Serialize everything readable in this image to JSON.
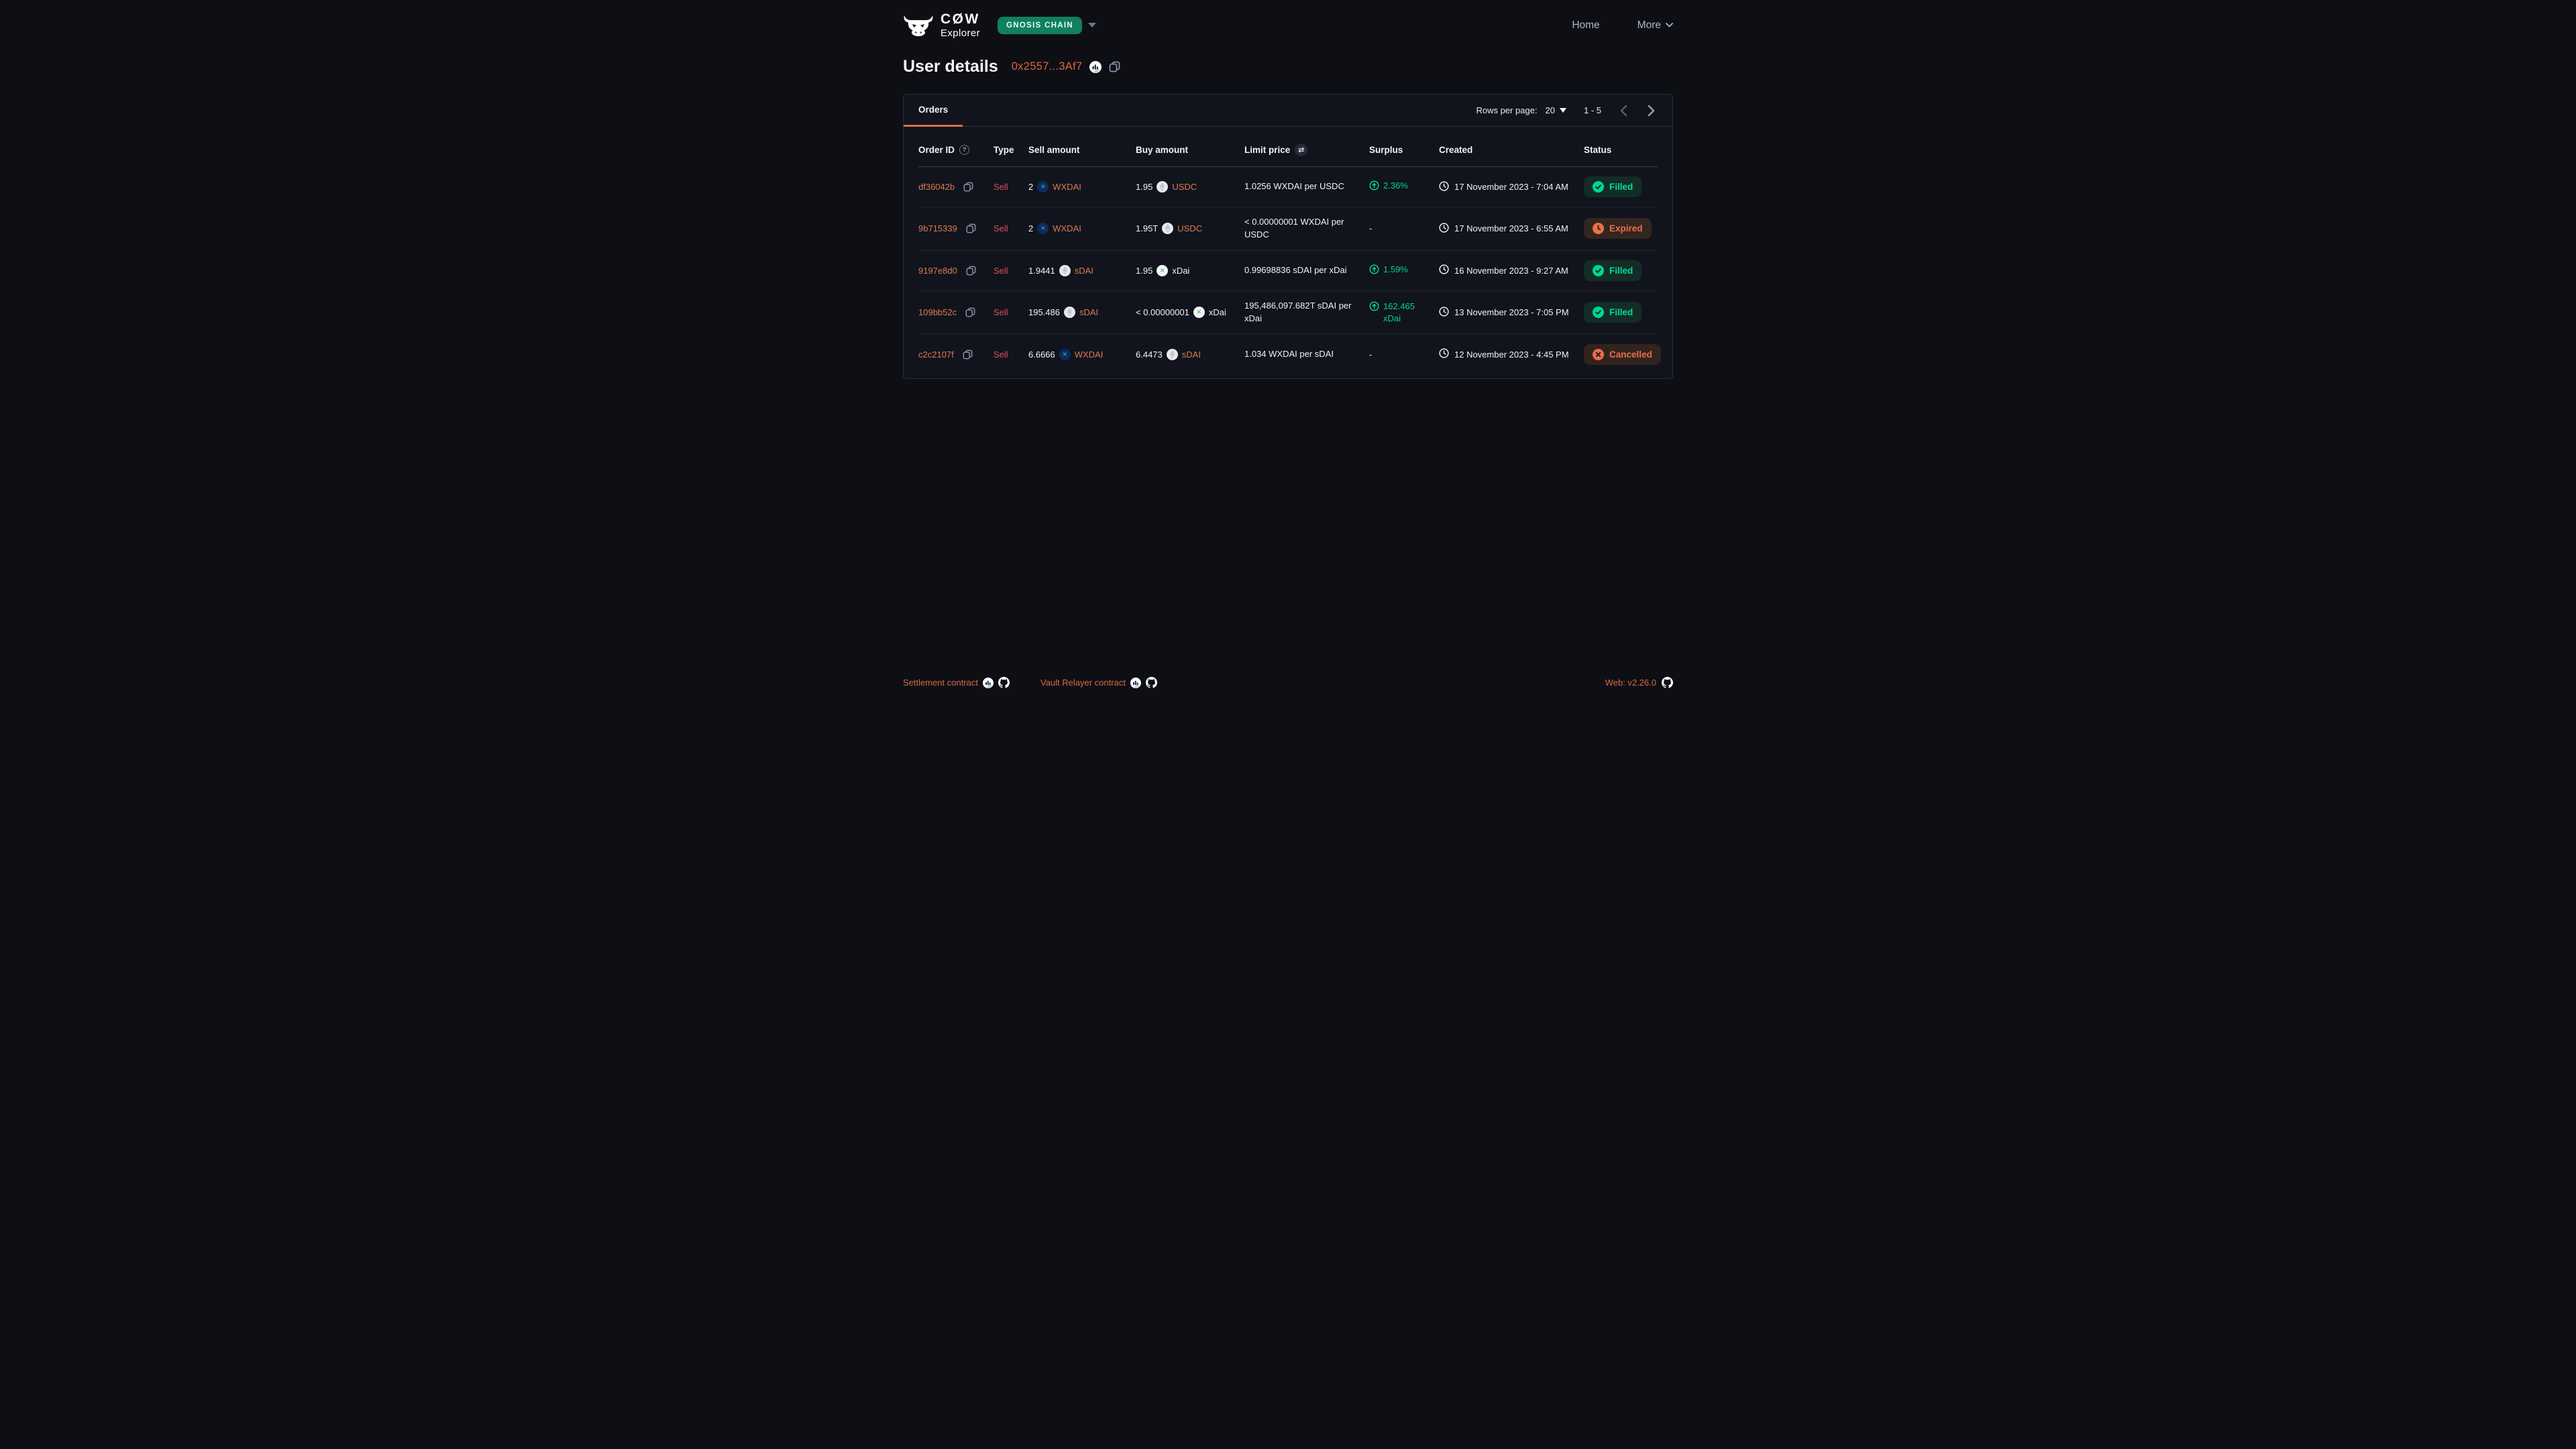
{
  "header": {
    "logo_title": "CØW",
    "logo_subtitle": "Explorer",
    "network_badge": "GNOSIS CHAIN",
    "nav": {
      "home": "Home",
      "more": "More"
    }
  },
  "page": {
    "title": "User details",
    "address": "0x2557...3Af7"
  },
  "tabs": {
    "orders": "Orders"
  },
  "pagination": {
    "rows_per_page_label": "Rows per page:",
    "rows_per_page_value": "20",
    "range": "1 - 5"
  },
  "table": {
    "columns": {
      "order_id": "Order ID",
      "type": "Type",
      "sell_amount": "Sell amount",
      "buy_amount": "Buy amount",
      "limit_price": "Limit price",
      "surplus": "Surplus",
      "created": "Created",
      "status": "Status"
    },
    "rows": [
      {
        "id": "df36042b",
        "type": "Sell",
        "sell": {
          "amount": "2",
          "token": "WXDAI",
          "icon": "wxdai",
          "link": true
        },
        "buy": {
          "amount": "1.95",
          "token": "USDC",
          "icon": "generic",
          "link": true
        },
        "limit_price": "1.0256 WXDAI per USDC",
        "surplus": "2.36%",
        "created": "17 November 2023 - 7:04 AM",
        "status": "Filled"
      },
      {
        "id": "9b715339",
        "type": "Sell",
        "sell": {
          "amount": "2",
          "token": "WXDAI",
          "icon": "wxdai",
          "link": true
        },
        "buy": {
          "amount": "1.95T",
          "token": "USDC",
          "icon": "generic",
          "link": true
        },
        "limit_price": "< 0.00000001 WXDAI per USDC",
        "surplus": "-",
        "created": "17 November 2023 - 6:55 AM",
        "status": "Expired"
      },
      {
        "id": "9197e8d0",
        "type": "Sell",
        "sell": {
          "amount": "1.9441",
          "token": "sDAI",
          "icon": "generic",
          "link": true
        },
        "buy": {
          "amount": "1.95",
          "token": "xDai",
          "icon": "xdai",
          "link": false
        },
        "limit_price": "0.99698836 sDAI per xDai",
        "surplus": "1.59%",
        "created": "16 November 2023 - 9:27 AM",
        "status": "Filled"
      },
      {
        "id": "109bb52c",
        "type": "Sell",
        "sell": {
          "amount": "195.486",
          "token": "sDAI",
          "icon": "generic",
          "link": true
        },
        "buy": {
          "amount": "< 0.00000001",
          "token": "xDai",
          "icon": "xdai",
          "link": false
        },
        "limit_price": "195,486,097.682T sDAI per xDai",
        "surplus": "162.465 xDai",
        "created": "13 November 2023 - 7:05 PM",
        "status": "Filled"
      },
      {
        "id": "c2c2107f",
        "type": "Sell",
        "sell": {
          "amount": "6.6666",
          "token": "WXDAI",
          "icon": "wxdai",
          "link": true
        },
        "buy": {
          "amount": "6.4473",
          "token": "sDAI",
          "icon": "generic",
          "link": true
        },
        "limit_price": "1.034 WXDAI per sDAI",
        "surplus": "-",
        "created": "12 November 2023 - 4:45 PM",
        "status": "Cancelled"
      }
    ]
  },
  "footer": {
    "settlement_label": "Settlement contract",
    "vault_relayer_label": "Vault Relayer contract",
    "version_label": "Web: v2.26.0"
  },
  "colors": {
    "accent_orange": "#dd6b44",
    "link_orange": "#dd7a52",
    "sell_red": "#dc4e5e",
    "green": "#00d392",
    "network_badge_green": "#108060",
    "page_bg": "#0d0f15",
    "card_bg": "#11141c"
  }
}
